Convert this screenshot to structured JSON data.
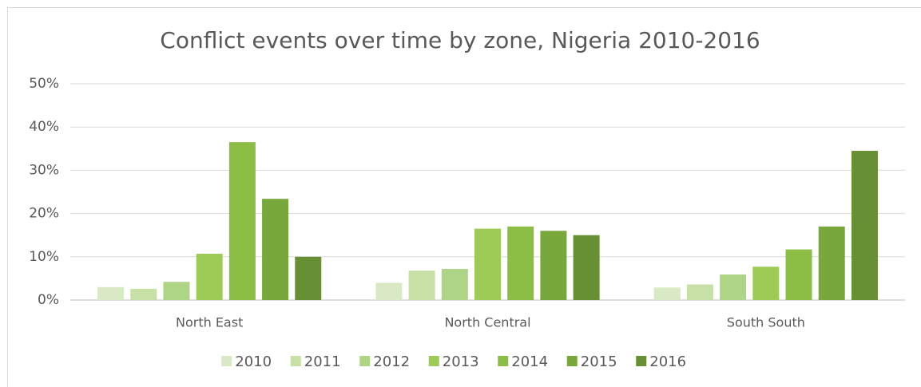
{
  "chart_data": {
    "type": "bar",
    "title": "Conflict events over time by zone, Nigeria 2010-2016",
    "categories": [
      "North East",
      "North Central",
      "South South"
    ],
    "series": [
      {
        "name": "2010",
        "color": "#d9e9c6",
        "values": [
          3.0,
          4.0,
          2.9
        ]
      },
      {
        "name": "2011",
        "color": "#c6e0a6",
        "values": [
          2.6,
          6.8,
          3.6
        ]
      },
      {
        "name": "2012",
        "color": "#add585",
        "values": [
          4.2,
          7.2,
          5.9
        ]
      },
      {
        "name": "2013",
        "color": "#9ccb56",
        "values": [
          10.7,
          16.5,
          7.7
        ]
      },
      {
        "name": "2014",
        "color": "#8cbd45",
        "values": [
          36.5,
          17.0,
          11.7
        ]
      },
      {
        "name": "2015",
        "color": "#78a83c",
        "values": [
          23.4,
          16.0,
          17.0
        ]
      },
      {
        "name": "2016",
        "color": "#678f33",
        "values": [
          10.0,
          15.0,
          34.5
        ]
      }
    ],
    "ylim": [
      0,
      50
    ],
    "yticks": [
      {
        "value": 0,
        "label": "0%"
      },
      {
        "value": 10,
        "label": "10%"
      },
      {
        "value": 20,
        "label": "20%"
      },
      {
        "value": 30,
        "label": "30%"
      },
      {
        "value": 40,
        "label": "40%"
      },
      {
        "value": 50,
        "label": "50%"
      }
    ],
    "grid": true,
    "legend": "bottom"
  }
}
